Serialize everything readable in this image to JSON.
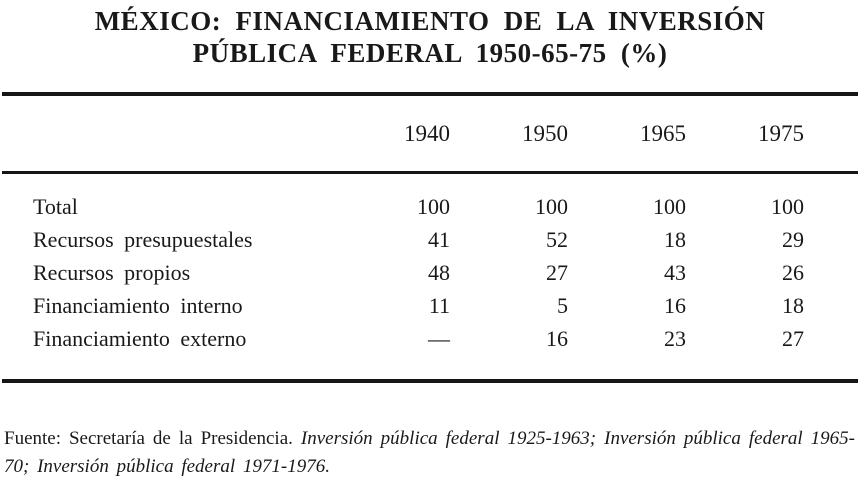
{
  "title": {
    "line1": "MÉXICO: FINANCIAMIENTO DE LA INVERSIÓN",
    "line2": "PÚBLICA FEDERAL 1950-65-75 (%)"
  },
  "table": {
    "columns": [
      "1940",
      "1950",
      "1965",
      "1975"
    ],
    "rows": [
      {
        "label": "Total",
        "values": [
          "100",
          "100",
          "100",
          "100"
        ]
      },
      {
        "label": "Recursos presupuestales",
        "values": [
          "41",
          "52",
          "18",
          "29"
        ]
      },
      {
        "label": "Recursos propios",
        "values": [
          "48",
          "27",
          "43",
          "26"
        ]
      },
      {
        "label": "Financiamiento interno",
        "values": [
          "11",
          "5",
          "16",
          "18"
        ]
      },
      {
        "label": "Financiamiento externo",
        "values": [
          "—",
          "16",
          "23",
          "27"
        ]
      }
    ]
  },
  "source": {
    "prefix": "Fuente: Secretaría de la Presidencia.",
    "works": "Inversión pública federal 1925-1963; Inversión pública federal 1965-70; Inversión pública federal 1971-1976."
  },
  "colors": {
    "ink": "#191919",
    "paper": "#ffffff"
  }
}
